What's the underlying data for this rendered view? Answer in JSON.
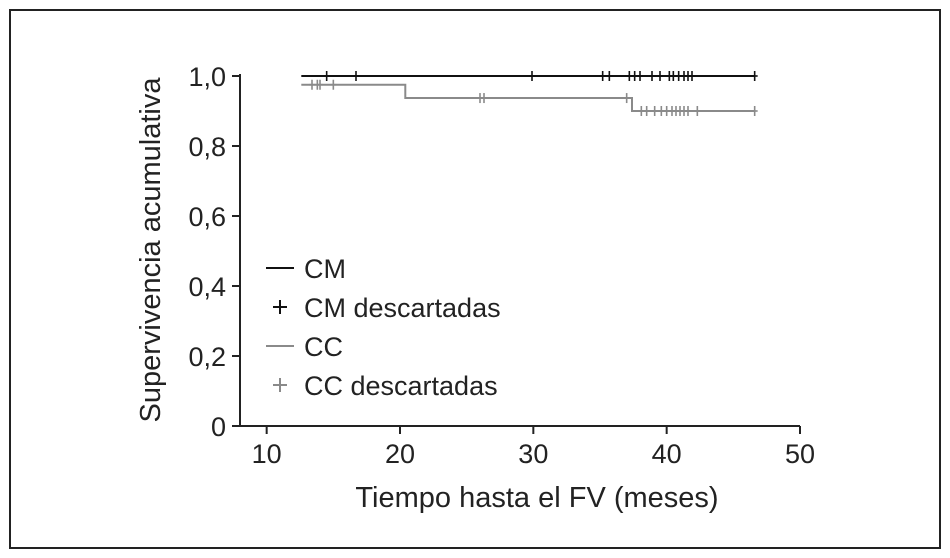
{
  "chart_data": {
    "type": "line",
    "subtype": "kaplan-meier",
    "title": "",
    "xlabel": "Tiempo hasta el FV (meses)",
    "ylabel": "Supervivencia acumulativa",
    "xlim": [
      8,
      50
    ],
    "ylim": [
      0,
      1.0
    ],
    "xticks": [
      10,
      20,
      30,
      40,
      50
    ],
    "xtick_labels": [
      "10",
      "20",
      "30",
      "40",
      "50"
    ],
    "yticks": [
      0,
      0.2,
      0.4,
      0.6,
      0.8,
      1.0
    ],
    "ytick_labels": [
      "0",
      "0,2",
      "0,4",
      "0,6",
      "0,8",
      "1,0"
    ],
    "grid": false,
    "legend_position": "left",
    "legend": [
      {
        "label": "CM",
        "marker": "line",
        "color": "#111111"
      },
      {
        "label": "CM descartadas",
        "marker": "plus",
        "color": "#111111"
      },
      {
        "label": "CC",
        "marker": "line",
        "color": "#8a8a8a"
      },
      {
        "label": "CC descartadas",
        "marker": "plus",
        "color": "#8a8a8a"
      }
    ],
    "series": [
      {
        "name": "CM",
        "color": "#111111",
        "steps": [
          [
            12.6,
            1.0
          ],
          [
            46.6,
            1.0
          ]
        ],
        "censored": [
          14.5,
          16.7,
          29.9,
          35.2,
          35.7,
          37.2,
          37.6,
          38.0,
          38.9,
          39.5,
          40.2,
          40.5,
          40.9,
          41.3,
          41.6,
          41.9,
          46.6
        ]
      },
      {
        "name": "CC",
        "color": "#8a8a8a",
        "steps": [
          [
            12.6,
            0.975
          ],
          [
            20.4,
            0.975
          ],
          [
            20.4,
            0.937
          ],
          [
            37.4,
            0.937
          ],
          [
            37.4,
            0.9
          ],
          [
            46.6,
            0.9
          ]
        ],
        "censored": [
          13.4,
          13.8,
          14.0,
          15.0,
          26.0,
          26.3,
          37.0,
          38.1,
          38.5,
          39.1,
          39.6,
          40.0,
          40.4,
          40.7,
          41.0,
          41.3,
          41.6,
          42.3,
          46.6
        ]
      }
    ]
  }
}
